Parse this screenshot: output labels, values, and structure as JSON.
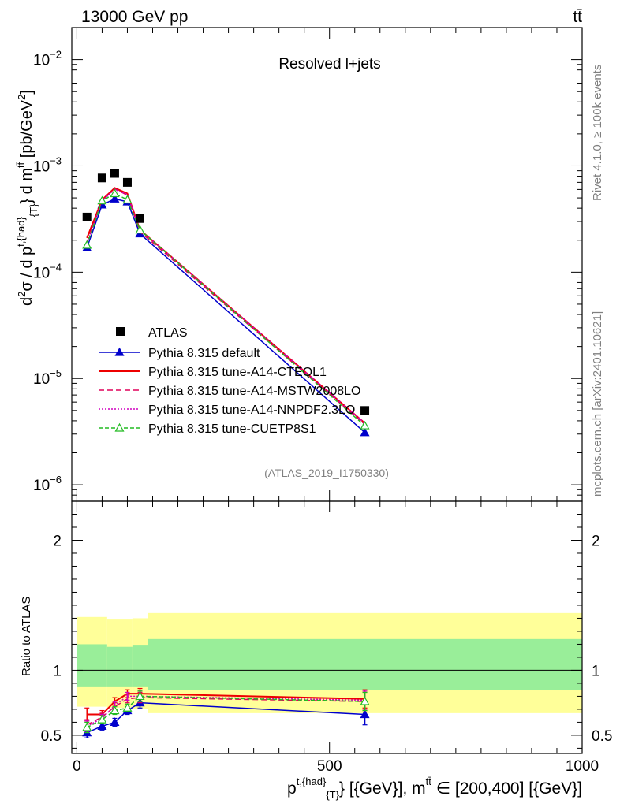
{
  "header": {
    "energy": "13000 GeV pp",
    "process": "tt̄",
    "rivet": "Rivet 4.1.0, ≥ 100k events",
    "mcplots": "mcplots.cern.ch [arXiv:2401.10621]"
  },
  "chart_data": {
    "type": "line",
    "title": "Resolved l+jets",
    "analysis": "(ATLAS_2019_I1750330)",
    "xlabel": "p^{t,{had}}_{T} [{GeV}], m^{tt̄} ∈ [200,400] [{GeV}]",
    "xlabel_parts": {
      "p": "p",
      "sup": "t,{had}",
      "sub": "{T}",
      "mid": "} [{GeV}], m",
      "tt": "tt̄",
      "rest": " ∈ [200,400] [{GeV}]"
    },
    "ylabel": "d²σ / d p^{t,{had}}_{T} d m^{tt̄} [pb/GeV²]",
    "ratio_ylabel": "Ratio to ATLAS",
    "xlim": [
      -10,
      1000
    ],
    "ylim": [
      7e-07,
      0.02
    ],
    "ratio_ylim": [
      0.36,
      2.3
    ],
    "x_ticks": [
      0,
      500,
      1000
    ],
    "y_ticks": [
      {
        "value": 1e-06,
        "label": "10",
        "exp": "−6"
      },
      {
        "value": 1e-05,
        "label": "10",
        "exp": "−5"
      },
      {
        "value": 0.0001,
        "label": "10",
        "exp": "−4"
      },
      {
        "value": 0.001,
        "label": "10",
        "exp": "−3"
      },
      {
        "value": 0.01,
        "label": "10",
        "exp": "−2"
      }
    ],
    "ratio_ticks": [
      0.5,
      1,
      2
    ],
    "x": [
      20,
      50,
      75,
      100,
      125,
      570
    ],
    "data": {
      "name": "ATLAS",
      "values": [
        0.00033,
        0.00077,
        0.00085,
        0.0007,
        0.00032,
        5e-06
      ]
    },
    "bands": [
      {
        "x1": 0,
        "x2": 60,
        "outer": [
          0.72,
          1.41
        ],
        "inner": [
          0.87,
          1.2
        ]
      },
      {
        "x1": 60,
        "x2": 110,
        "outer": [
          0.71,
          1.39
        ],
        "inner": [
          0.87,
          1.18
        ]
      },
      {
        "x1": 110,
        "x2": 140,
        "outer": [
          0.7,
          1.4
        ],
        "inner": [
          0.87,
          1.19
        ]
      },
      {
        "x1": 140,
        "x2": 1000,
        "outer": [
          0.67,
          1.44
        ],
        "inner": [
          0.85,
          1.24
        ]
      }
    ],
    "series": [
      {
        "name": "Pythia 8.315 default",
        "color": "#0000cc",
        "dash": "",
        "marker": "tri-filled",
        "values": [
          0.00017,
          0.00043,
          0.00049,
          0.00046,
          0.00023,
          3.1e-06
        ],
        "ratio": [
          0.52,
          0.57,
          0.6,
          0.69,
          0.75,
          0.66
        ],
        "ratio_err": [
          0.04,
          0.03,
          0.03,
          0.03,
          0.04,
          0.08
        ]
      },
      {
        "name": "Pythia 8.315 tune-A14-CTEQL1",
        "color": "#ee0000",
        "dash": "",
        "marker": "none",
        "values": [
          0.00021,
          0.00048,
          0.00062,
          0.00055,
          0.00025,
          3.8e-06
        ],
        "ratio": [
          0.66,
          0.66,
          0.76,
          0.82,
          0.82,
          0.78
        ],
        "ratio_err": [
          0.05,
          0.03,
          0.03,
          0.03,
          0.04,
          0.07
        ]
      },
      {
        "name": "Pythia 8.315 tune-A14-MSTW2008LO",
        "color": "#e0005a",
        "dash": "7 4",
        "marker": "none",
        "values": [
          0.00019,
          0.00047,
          0.00061,
          0.00053,
          0.00024,
          3.7e-06
        ],
        "ratio": [
          0.58,
          0.64,
          0.72,
          0.78,
          0.79,
          0.76
        ],
        "ratio_err": [
          0.04,
          0.03,
          0.03,
          0.03,
          0.04,
          0.07
        ]
      },
      {
        "name": "Pythia 8.315 tune-A14-NNPDF2.3LO",
        "color": "#d000c0",
        "dash": "2 2",
        "marker": "none",
        "values": [
          0.00019,
          0.00047,
          0.0006,
          0.00054,
          0.00025,
          3.8e-06
        ],
        "ratio": [
          0.57,
          0.63,
          0.73,
          0.8,
          0.8,
          0.77
        ],
        "ratio_err": [
          0.04,
          0.03,
          0.03,
          0.03,
          0.04,
          0.07
        ]
      },
      {
        "name": "Pythia 8.315 tune-CUETP8S1",
        "color": "#22bb22",
        "dash": "5 3",
        "marker": "tri-open",
        "values": [
          0.00018,
          0.00047,
          0.00055,
          0.00048,
          0.00025,
          3.6e-06
        ],
        "ratio": [
          0.56,
          0.62,
          0.69,
          0.71,
          0.8,
          0.76
        ],
        "ratio_err": [
          0.04,
          0.03,
          0.03,
          0.03,
          0.04,
          0.07
        ]
      }
    ]
  }
}
